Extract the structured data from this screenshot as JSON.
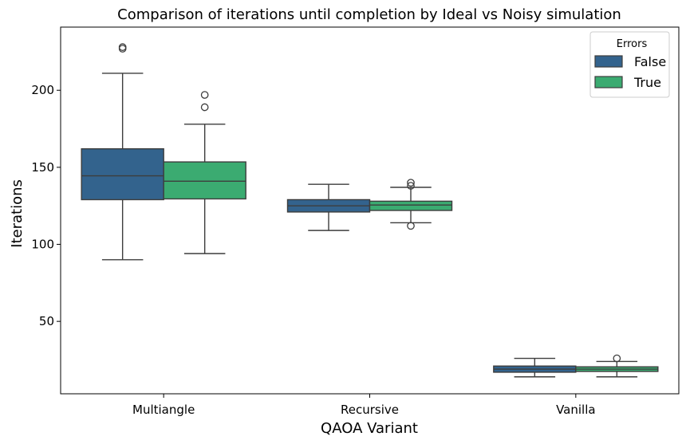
{
  "chart_data": {
    "type": "box",
    "title": "Comparison of iterations until completion by Ideal vs Noisy simulation",
    "xlabel": "QAOA Variant",
    "ylabel": "Iterations",
    "categories": [
      "Multiangle",
      "Recursive",
      "Vanilla"
    ],
    "yticks": [
      50,
      100,
      150,
      200
    ],
    "ylim": [
      3,
      241
    ],
    "legend": {
      "title": "Errors",
      "placement": "top-right"
    },
    "series": [
      {
        "name": "False",
        "color": "#33638d",
        "boxes": [
          {
            "whisker_low": 90,
            "q1": 129,
            "median": 144.5,
            "q3": 162,
            "whisker_high": 211,
            "outliers": [
              227,
              228
            ]
          },
          {
            "whisker_low": 109,
            "q1": 121,
            "median": 125,
            "q3": 129,
            "whisker_high": 139,
            "outliers": []
          },
          {
            "whisker_low": 14,
            "q1": 17,
            "median": 19,
            "q3": 21,
            "whisker_high": 26,
            "outliers": []
          }
        ]
      },
      {
        "name": "True",
        "color": "#3bab71",
        "boxes": [
          {
            "whisker_low": 94,
            "q1": 129.5,
            "median": 141,
            "q3": 153.5,
            "whisker_high": 178,
            "outliers": [
              189,
              197
            ]
          },
          {
            "whisker_low": 114,
            "q1": 122,
            "median": 125.5,
            "q3": 128,
            "whisker_high": 137,
            "outliers": [
              112,
              138,
              140
            ]
          },
          {
            "whisker_low": 14,
            "q1": 17.5,
            "median": 19,
            "q3": 20.5,
            "whisker_high": 24,
            "outliers": [
              26
            ]
          }
        ]
      }
    ]
  }
}
